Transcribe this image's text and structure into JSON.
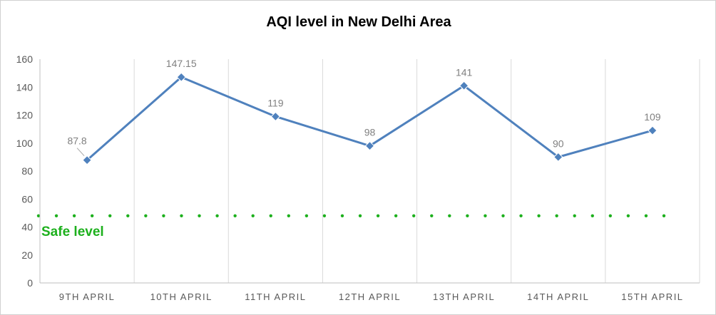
{
  "chart_data": {
    "type": "line",
    "title": "AQI level in New Delhi Area",
    "xlabel": "",
    "ylabel": "",
    "categories": [
      "9TH APRIL",
      "10TH APRIL",
      "11TH APRIL",
      "12TH APRIL",
      "13TH APRIL",
      "14TH APRIL",
      "15TH APRIL"
    ],
    "series": [
      {
        "values": [
          87.8,
          147.15,
          119,
          98,
          141,
          90,
          109
        ],
        "color": "#4f81bd",
        "marker": "diamond"
      }
    ],
    "data_labels": [
      "87.8",
      "147.15",
      "119",
      "98",
      "141",
      "90",
      "109"
    ],
    "ylim": [
      0,
      160
    ],
    "yticks": [
      0,
      20,
      40,
      60,
      80,
      100,
      120,
      140,
      160
    ],
    "grid": "vertical category dividers",
    "reference_line": {
      "label": "Safe level",
      "value": 48,
      "style": "dotted",
      "color": "#1db01d"
    },
    "legend": "none"
  }
}
